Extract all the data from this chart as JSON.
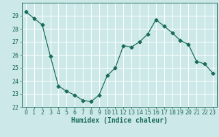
{
  "x": [
    0,
    1,
    2,
    3,
    4,
    5,
    6,
    7,
    8,
    9,
    10,
    11,
    12,
    13,
    14,
    15,
    16,
    17,
    18,
    19,
    20,
    21,
    22,
    23
  ],
  "y": [
    29.3,
    28.8,
    28.3,
    25.9,
    23.6,
    23.2,
    22.9,
    22.5,
    22.4,
    22.9,
    24.4,
    25.0,
    26.7,
    26.6,
    27.0,
    27.6,
    28.7,
    28.2,
    27.7,
    27.1,
    26.8,
    25.5,
    25.3,
    24.6
  ],
  "line_color": "#1a6b5a",
  "marker": "D",
  "markersize": 2.5,
  "bg_color": "#cce8e8",
  "grid_color": "#ffffff",
  "xlabel": "Humidex (Indice chaleur)",
  "xlim": [
    -0.5,
    23.5
  ],
  "ylim": [
    22,
    30
  ],
  "yticks": [
    22,
    23,
    24,
    25,
    26,
    27,
    28,
    29
  ],
  "xticks": [
    0,
    1,
    2,
    3,
    4,
    5,
    6,
    7,
    8,
    9,
    10,
    11,
    12,
    13,
    14,
    15,
    16,
    17,
    18,
    19,
    20,
    21,
    22,
    23
  ],
  "tick_color": "#1a6b5a",
  "label_fontsize": 7,
  "tick_fontsize": 6
}
